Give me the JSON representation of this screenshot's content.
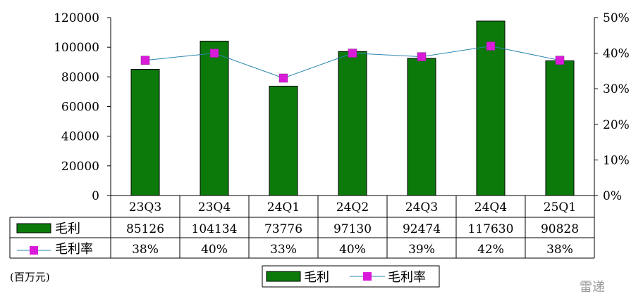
{
  "chart_data": {
    "type": "bar",
    "categories": [
      "23Q3",
      "23Q4",
      "24Q1",
      "24Q2",
      "24Q3",
      "24Q4",
      "25Q1"
    ],
    "series": [
      {
        "name": "毛利",
        "type": "bar",
        "axis": "left",
        "values": [
          85126,
          104134,
          73776,
          97130,
          92474,
          117630,
          90828
        ],
        "labels": [
          "85126",
          "104134",
          "73776",
          "97130",
          "92474",
          "117630",
          "90828"
        ],
        "color": "#0b7a0b"
      },
      {
        "name": "毛利率",
        "type": "line",
        "axis": "right",
        "values": [
          38,
          40,
          33,
          40,
          39,
          42,
          38
        ],
        "labels": [
          "38%",
          "40%",
          "33%",
          "40%",
          "39%",
          "42%",
          "38%"
        ],
        "color": "#d91bd9",
        "line_color": "#2a86b0"
      }
    ],
    "y_left": {
      "range": [
        0,
        120000
      ],
      "ticks": [
        "0",
        "20000",
        "40000",
        "60000",
        "80000",
        "100000",
        "120000"
      ]
    },
    "y_right": {
      "range": [
        0,
        50
      ],
      "ticks": [
        "0%",
        "10%",
        "20%",
        "30%",
        "40%",
        "50%"
      ]
    },
    "grid": false,
    "legend_position": "bottom",
    "data_table": true
  },
  "unit_note": "(百万元)",
  "watermark": "雷递"
}
